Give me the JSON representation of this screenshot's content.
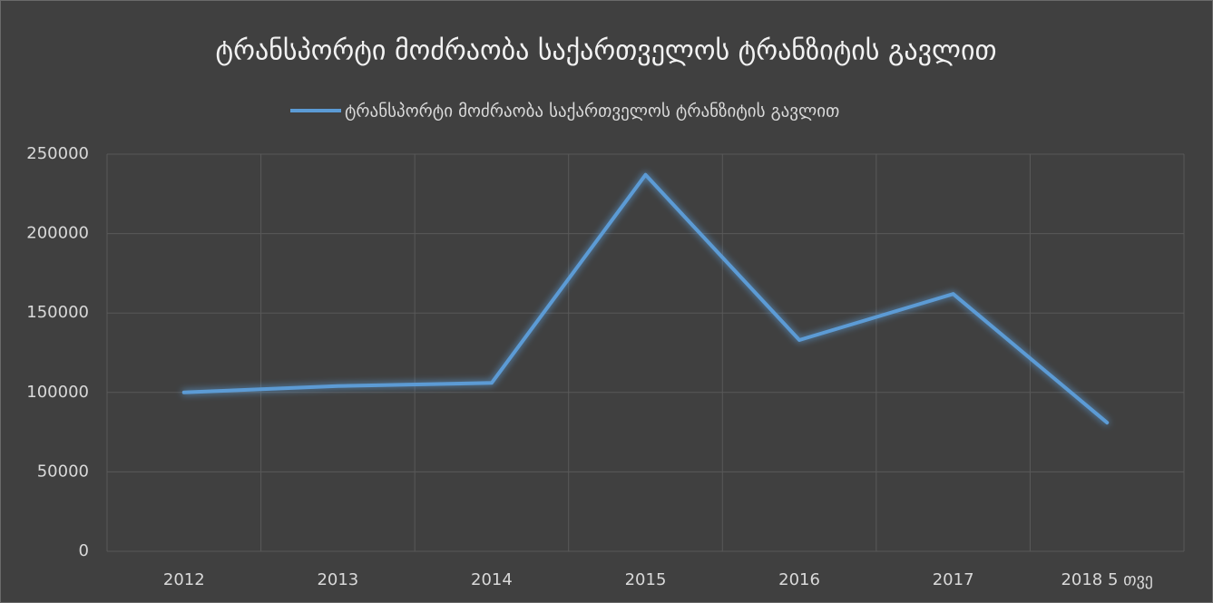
{
  "chart_data": {
    "type": "line",
    "title": "ტრანსპორტი მოძრაობა საქართველოს ტრანზიტის გავლით",
    "categories": [
      "2012",
      "2013",
      "2014",
      "2015",
      "2016",
      "2017",
      "2018 5 თვე"
    ],
    "series": [
      {
        "name": "ტრანსპორტი მოძრაობა საქართველოს ტრანზიტის გავლით",
        "color": "#5b9bd5",
        "values": [
          100000,
          104000,
          106000,
          237000,
          133000,
          162000,
          81000
        ]
      }
    ],
    "ylim": [
      0,
      250000
    ],
    "yticks": [
      0,
      50000,
      100000,
      150000,
      200000,
      250000
    ],
    "grid": true,
    "legend": "top"
  }
}
